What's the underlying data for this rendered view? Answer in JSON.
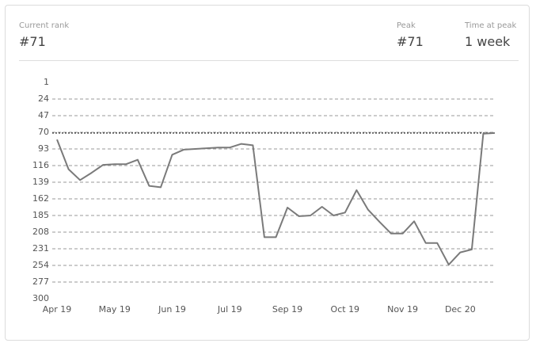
{
  "header": {
    "current_label": "Current rank",
    "current_value": "#71",
    "peak_label": "Peak",
    "peak_value": "#71",
    "time_label": "Time at peak",
    "time_value": "1 week"
  },
  "chart_data": {
    "type": "line",
    "color": "#7a7a7a",
    "categories": [
      "Apr 19",
      null,
      null,
      null,
      null,
      "May 19",
      null,
      null,
      null,
      null,
      "Jun 19",
      null,
      null,
      null,
      null,
      "Jul 19",
      null,
      null,
      null,
      null,
      "Sep 19",
      null,
      null,
      null,
      null,
      "Oct 19",
      null,
      null,
      null,
      null,
      "Nov 19",
      null,
      null,
      null,
      null,
      "Dec 20",
      null,
      null,
      null
    ],
    "values": [
      80,
      121,
      136,
      126,
      115,
      114,
      114,
      108,
      144,
      146,
      101,
      94,
      93,
      92,
      91,
      91,
      86,
      88,
      215,
      215,
      174,
      186,
      185,
      173,
      185,
      181,
      150,
      177,
      194,
      210,
      210,
      193,
      223,
      223,
      253,
      236,
      232,
      72,
      71
    ],
    "ylim": [
      300,
      1
    ],
    "yticks": [
      1,
      24,
      47,
      70,
      93,
      116,
      139,
      162,
      185,
      208,
      231,
      254,
      277,
      300
    ],
    "grid": true,
    "reference_line": 71
  }
}
